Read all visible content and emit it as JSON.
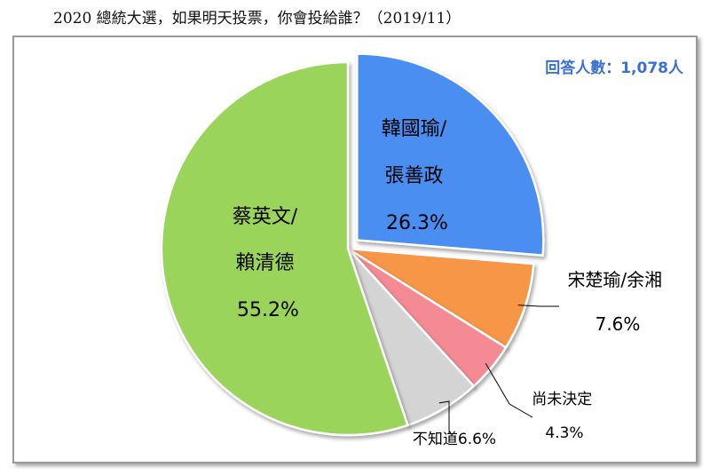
{
  "header": {
    "title": "2020 總統大選，如果明天投票，你會投給誰？（2019/11）"
  },
  "respondents": "回答人數：1,078人",
  "colors": {
    "han": "#4a8ef0",
    "soong": "#f79646",
    "undecided": "#f48b94",
    "unknown": "#d4d4d4",
    "tsai": "#9bd45a",
    "respondents": "#3a6fd4"
  },
  "chart_data": {
    "type": "pie",
    "start_angle_deg": 0,
    "direction": "clockwise",
    "slices": [
      {
        "key": "han",
        "label_lines": [
          "韓國瑜/",
          "張善政",
          "26.3%"
        ],
        "value": 26.3,
        "color": "#4a8ef0",
        "exploded": true
      },
      {
        "key": "soong",
        "label_lines": [
          "宋楚瑜/余湘",
          "7.6%"
        ],
        "value": 7.6,
        "color": "#f79646",
        "exploded": false
      },
      {
        "key": "undecided",
        "label_lines": [
          "尚未決定",
          "4.3%"
        ],
        "value": 4.3,
        "color": "#f48b94",
        "exploded": false
      },
      {
        "key": "unknown",
        "label_lines": [
          "不知道6.6%"
        ],
        "value": 6.6,
        "color": "#d4d4d4",
        "exploded": false
      },
      {
        "key": "tsai",
        "label_lines": [
          "蔡英文/",
          "賴清德",
          "55.2%"
        ],
        "value": 55.2,
        "color": "#9bd45a",
        "exploded": false
      }
    ]
  }
}
